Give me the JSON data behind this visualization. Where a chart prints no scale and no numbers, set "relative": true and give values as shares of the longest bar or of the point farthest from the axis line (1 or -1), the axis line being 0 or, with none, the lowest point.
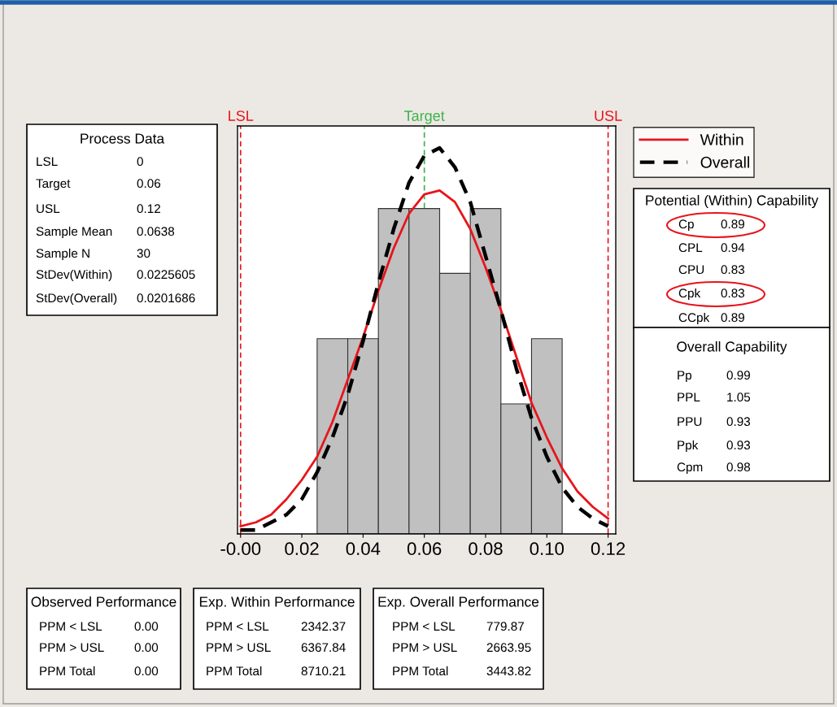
{
  "chart_data": {
    "type": "histogram",
    "relative": true,
    "bins": [
      0.025,
      0.035,
      0.045,
      0.055,
      0.065,
      0.075,
      0.085,
      0.095,
      0.105
    ],
    "values": [
      0.506,
      0.506,
      0.843,
      0.843,
      0.675,
      0.843,
      0.337,
      0.506
    ],
    "color": "#c0c0c0",
    "series": [
      {
        "name": "Within",
        "type": "line",
        "color": "#e8141b",
        "line_style": "solid",
        "x": [
          0,
          0.005,
          0.01,
          0.015,
          0.02,
          0.025,
          0.03,
          0.035,
          0.04,
          0.045,
          0.05,
          0.055,
          0.06,
          0.065,
          0.07,
          0.075,
          0.08,
          0.085,
          0.09,
          0.095,
          0.1,
          0.105,
          0.11,
          0.115,
          0.12
        ],
        "values": [
          0.02,
          0.03,
          0.05,
          0.09,
          0.14,
          0.2,
          0.29,
          0.4,
          0.51,
          0.63,
          0.74,
          0.83,
          0.88,
          0.89,
          0.86,
          0.79,
          0.69,
          0.58,
          0.46,
          0.34,
          0.25,
          0.17,
          0.11,
          0.07,
          0.04
        ]
      },
      {
        "name": "Overall",
        "type": "line",
        "color": "#000000",
        "line_style": "dashed",
        "x": [
          0,
          0.005,
          0.01,
          0.015,
          0.02,
          0.025,
          0.03,
          0.035,
          0.04,
          0.045,
          0.05,
          0.055,
          0.06,
          0.065,
          0.07,
          0.075,
          0.08,
          0.085,
          0.09,
          0.095,
          0.1,
          0.105,
          0.11,
          0.115,
          0.12
        ],
        "values": [
          0.01,
          0.01,
          0.03,
          0.05,
          0.09,
          0.16,
          0.25,
          0.36,
          0.5,
          0.65,
          0.79,
          0.91,
          0.98,
          1.0,
          0.95,
          0.86,
          0.72,
          0.58,
          0.43,
          0.3,
          0.2,
          0.12,
          0.07,
          0.04,
          0.02
        ]
      }
    ],
    "xlim": [
      -0.001,
      0.1225
    ],
    "xticks": [
      {
        "value": 0,
        "label": "-0.00"
      },
      {
        "value": 0.02,
        "label": "0.02"
      },
      {
        "value": 0.04,
        "label": "0.04"
      },
      {
        "value": 0.06,
        "label": "0.06"
      },
      {
        "value": 0.08,
        "label": "0.08"
      },
      {
        "value": 0.1,
        "label": "0.10"
      },
      {
        "value": 0.12,
        "label": "0.12"
      }
    ],
    "tick_labels": "x",
    "ref_lines": [
      {
        "axis": "x",
        "value": 0,
        "label": "LSL",
        "color": "#e8141b",
        "line_style": "dashed"
      },
      {
        "axis": "x",
        "value": 0.06,
        "label": "Target",
        "color": "#3cb34a",
        "line_style": "dashed"
      },
      {
        "axis": "x",
        "value": 0.12,
        "label": "USL",
        "color": "#e8141b",
        "line_style": "dashed"
      }
    ],
    "legend": "top right",
    "grid": false,
    "annotations": [
      "Process Data",
      "LSL",
      "0",
      "Target",
      "0.06",
      "USL",
      "0.12",
      "Sample Mean",
      "0.0638",
      "Sample N",
      "30",
      "StDev(Within)",
      "0.0225605",
      "StDev(Overall)",
      "0.0201686",
      "Potential (Within) Capability",
      "Cp",
      "0.89",
      "CPL",
      "0.94",
      "CPU",
      "0.83",
      "Cpk",
      "0.83",
      "CCpk",
      "0.89",
      "Overall Capability",
      "Pp",
      "0.99",
      "PPL",
      "1.05",
      "PPU",
      "0.93",
      "Ppk",
      "0.93",
      "Cpm",
      "0.98",
      "Observed Performance",
      "PPM < LSL",
      "0.00",
      "PPM > USL",
      "0.00",
      "PPM Total",
      "0.00",
      "Exp. Within Performance",
      "PPM < LSL",
      "2342.37",
      "PPM > USL",
      "6367.84",
      "PPM Total",
      "8710.21",
      "Exp. Overall Performance",
      "PPM < LSL",
      "779.87",
      "PPM > USL",
      "2663.95",
      "PPM Total",
      "3443.82"
    ]
  }
}
